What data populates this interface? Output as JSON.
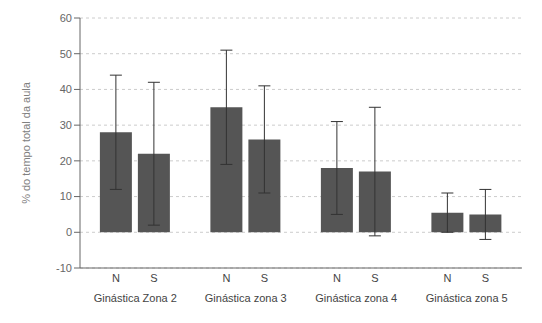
{
  "chart_data": {
    "type": "bar",
    "categories": [
      "Ginástica Zona 2",
      "Ginástica zona 3",
      "Ginástica zona 4",
      "Ginástica zona 5"
    ],
    "series": [
      {
        "name": "N",
        "color": "#555555",
        "values": [
          28,
          35,
          18,
          5.5
        ],
        "errors": [
          16,
          16,
          13,
          5.5
        ]
      },
      {
        "name": "S",
        "color": "#555555",
        "values": [
          22,
          26,
          17,
          5.0
        ],
        "errors": [
          20,
          15,
          18,
          7.0
        ]
      }
    ],
    "ylabel": "% do tempo total da aula",
    "ylim": [
      -10,
      60
    ],
    "yticks": [
      -10,
      0,
      10,
      20,
      30,
      40,
      50,
      60
    ],
    "grid": true
  }
}
